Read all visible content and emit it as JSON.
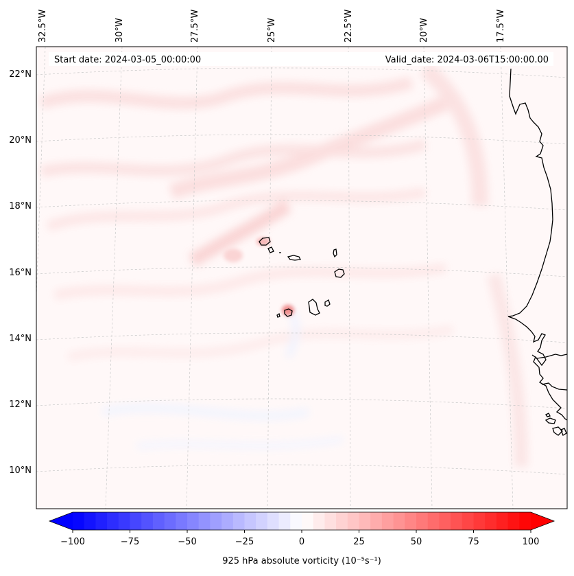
{
  "header": {
    "start_date": "Start date: 2024-03-05_00:00:00",
    "valid_date": "Valid_date: 2024-03-06T15:00:00.00"
  },
  "map": {
    "projection": "lambert-conformal",
    "gridlines": "dashed",
    "longitude_labels": [
      "32.5°W",
      "30°W",
      "27.5°W",
      "25°W",
      "22.5°W",
      "20°W",
      "17.5°W"
    ],
    "latitude_labels": [
      "22°N",
      "20°N",
      "18°N",
      "16°N",
      "14°N",
      "12°N",
      "10°N"
    ],
    "field_colors": {
      "weak_positive": "#fdeeee",
      "moderate_positive": "#f9b3b3",
      "weak_negative": "#eef2ff",
      "background": "#fff8f8"
    }
  },
  "colorbar": {
    "label": "925 hPa absolute vorticity (10⁻⁵s⁻¹)",
    "ticks": [
      "−100",
      "−75",
      "−50",
      "−25",
      "0",
      "25",
      "50",
      "75",
      "100"
    ],
    "min": -100,
    "max": 100,
    "extend": "both",
    "cmap": "bwr",
    "color_min": "#0000ff",
    "color_mid": "#ffffff",
    "color_max": "#ff0000"
  }
}
